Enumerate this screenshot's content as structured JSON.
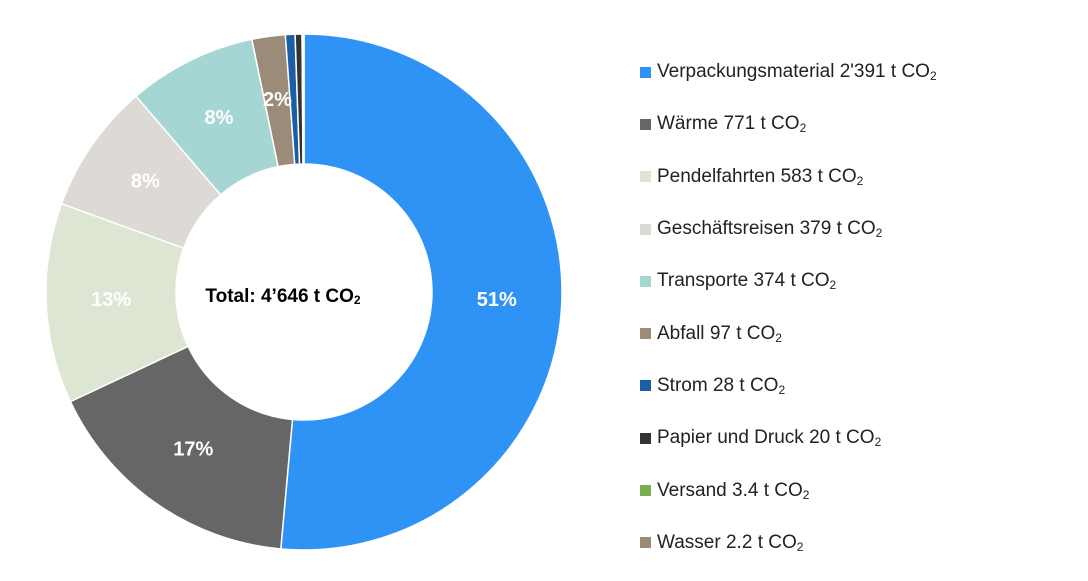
{
  "chart_data": {
    "type": "pie",
    "donut": true,
    "center_label": "Total: 4’646 t CO",
    "center_label_sub": "2",
    "unit": "t CO",
    "unit_sub": "2",
    "legend_position": "right",
    "slices": [
      {
        "name": "Verpackungsmaterial",
        "value_text": "2'391",
        "value": 2391,
        "label": "51%",
        "color": "#2E93F5",
        "label_color": "#ffffff"
      },
      {
        "name": "Wärme",
        "value_text": "771",
        "value": 771,
        "label": "17%",
        "color": "#666666",
        "label_color": "#ffffff"
      },
      {
        "name": "Pendelfahrten",
        "value_text": "583",
        "value": 583,
        "label": "13%",
        "color": "#DCE6D2",
        "label_color": "#ffffff"
      },
      {
        "name": "Geschäftsreisen",
        "value_text": "379",
        "value": 379,
        "label": "8%",
        "color": "#DDD9D4",
        "label_color": "#ffffff"
      },
      {
        "name": "Transporte",
        "value_text": "374",
        "value": 374,
        "label": "8%",
        "color": "#A6D6D4",
        "label_color": "#ffffff"
      },
      {
        "name": "Abfall",
        "value_text": "97",
        "value": 97,
        "label": "2%",
        "color": "#9C8B78",
        "label_color": "#ffffff"
      },
      {
        "name": "Strom",
        "value_text": "28",
        "value": 28,
        "label": "",
        "color": "#1C5DA8",
        "label_color": "#ffffff"
      },
      {
        "name": "Papier und Druck",
        "value_text": "20",
        "value": 20,
        "label": "",
        "color": "#333333",
        "label_color": "#ffffff"
      },
      {
        "name": "Versand",
        "value_text": "3.4",
        "value": 3.4,
        "label": "",
        "color": "#7AAE52",
        "label_color": "#ffffff"
      },
      {
        "name": "Wasser",
        "value_text": "2.2",
        "value": 2.2,
        "label": "",
        "color": "#9C8B78",
        "label_color": "#ffffff"
      }
    ]
  }
}
